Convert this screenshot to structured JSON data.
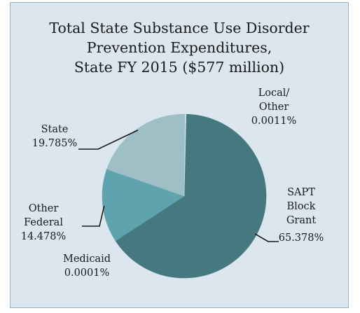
{
  "chart_data": {
    "type": "pie",
    "title_lines": [
      "Total State Substance Use Disorder",
      "Prevention Expenditures,",
      "State FY 2015 ($577 million)"
    ],
    "slices": [
      {
        "label": "SAPT Block Grant",
        "label_lines": [
          "SAPT",
          "Block",
          "Grant"
        ],
        "value_text": "65.378%",
        "value": 65.378,
        "color": "#467880"
      },
      {
        "label": "Medicaid",
        "label_lines": [
          "Medicaid"
        ],
        "value_text": "0.0001%",
        "value": 0.0001,
        "color": "#467880"
      },
      {
        "label": "Other Federal",
        "label_lines": [
          "Other",
          "Federal"
        ],
        "value_text": "14.478%",
        "value": 14.478,
        "color": "#5fa3ae"
      },
      {
        "label": "State",
        "label_lines": [
          "State"
        ],
        "value_text": "19.785%",
        "value": 19.785,
        "color": "#9fbfc6"
      },
      {
        "label": "Local/ Other",
        "label_lines": [
          "Local/",
          "Other"
        ],
        "value_text": "0.0011%",
        "value": 0.0011,
        "color": "#c8dde2"
      }
    ],
    "start_angle_deg": 0,
    "direction": "clockwise",
    "legend": "none"
  }
}
